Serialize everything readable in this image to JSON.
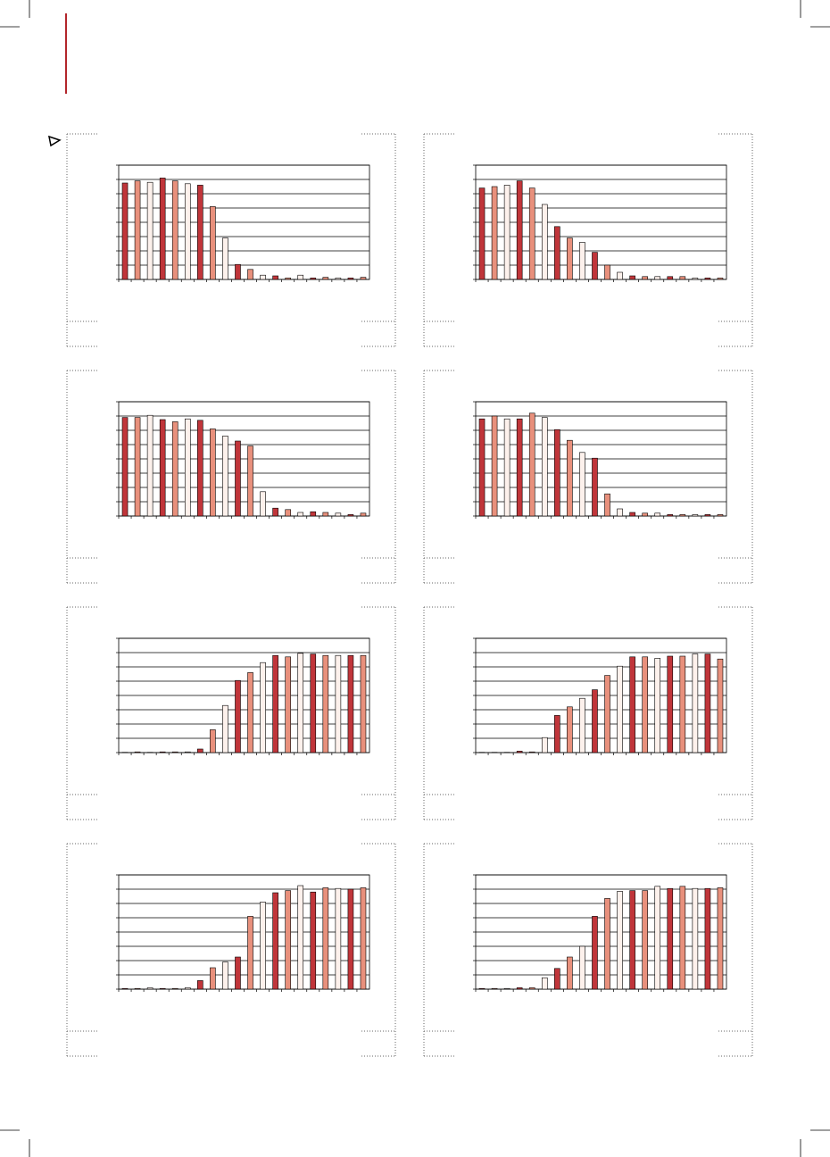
{
  "chart_data": [
    {
      "type": "bar",
      "colors": [
        "#c0353a",
        "#e8907c",
        "#fdf1ec"
      ],
      "ylim": [
        0,
        8
      ],
      "yticks": [
        0,
        1,
        2,
        3,
        4,
        5,
        6,
        7,
        8
      ],
      "grid": true,
      "values": [
        6.75,
        6.9,
        6.8,
        7.1,
        6.9,
        6.7,
        6.6,
        5.1,
        2.9,
        1.05,
        0.7,
        0.3,
        0.25,
        0.1,
        0.3,
        0.1,
        0.15,
        0.1,
        0.1,
        0.15
      ]
    },
    {
      "type": "bar",
      "colors": [
        "#c0353a",
        "#e8907c",
        "#fdf1ec"
      ],
      "ylim": [
        0,
        8
      ],
      "yticks": [
        0,
        1,
        2,
        3,
        4,
        5,
        6,
        7,
        8
      ],
      "grid": true,
      "values": [
        6.4,
        6.5,
        6.6,
        6.9,
        6.4,
        5.25,
        3.7,
        2.9,
        2.6,
        1.9,
        1.0,
        0.5,
        0.25,
        0.2,
        0.2,
        0.2,
        0.2,
        0.1,
        0.1,
        0.1
      ]
    },
    {
      "type": "bar",
      "colors": [
        "#c0353a",
        "#e8907c",
        "#fdf1ec"
      ],
      "ylim": [
        0,
        8
      ],
      "yticks": [
        0,
        1,
        2,
        3,
        4,
        5,
        6,
        7,
        8
      ],
      "grid": true,
      "values": [
        6.9,
        6.9,
        7.05,
        6.75,
        6.6,
        6.8,
        6.7,
        6.1,
        5.6,
        5.25,
        4.9,
        1.7,
        0.55,
        0.45,
        0.25,
        0.3,
        0.25,
        0.2,
        0.1,
        0.2
      ]
    },
    {
      "type": "bar",
      "colors": [
        "#c0353a",
        "#e8907c",
        "#fdf1ec"
      ],
      "ylim": [
        0,
        8
      ],
      "yticks": [
        0,
        1,
        2,
        3,
        4,
        5,
        6,
        7,
        8
      ],
      "grid": true,
      "values": [
        6.8,
        7.0,
        6.8,
        6.8,
        7.2,
        6.9,
        6.05,
        5.3,
        4.45,
        4.05,
        1.55,
        0.5,
        0.25,
        0.2,
        0.2,
        0.1,
        0.1,
        0.1,
        0.1,
        0.1
      ]
    },
    {
      "type": "bar",
      "colors": [
        "#c0353a",
        "#e8907c",
        "#fdf1ec"
      ],
      "ylim": [
        0,
        8
      ],
      "yticks": [
        0,
        1,
        2,
        3,
        4,
        5,
        6,
        7,
        8
      ],
      "grid": true,
      "values": [
        0.02,
        0.05,
        0.02,
        0.05,
        0.05,
        0.05,
        0.25,
        1.6,
        3.3,
        5.05,
        5.6,
        6.3,
        6.8,
        6.7,
        6.95,
        6.9,
        6.8,
        6.8,
        6.8,
        6.8
      ]
    },
    {
      "type": "bar",
      "colors": [
        "#c0353a",
        "#e8907c",
        "#fdf1ec"
      ],
      "ylim": [
        0,
        8
      ],
      "yticks": [
        0,
        1,
        2,
        3,
        4,
        5,
        6,
        7,
        8
      ],
      "grid": true,
      "values": [
        0.02,
        0.02,
        0.02,
        0.1,
        0.05,
        1.05,
        2.6,
        3.2,
        3.8,
        4.4,
        5.4,
        6.05,
        6.7,
        6.7,
        6.6,
        6.75,
        6.75,
        6.9,
        6.9,
        6.55
      ]
    },
    {
      "type": "bar",
      "colors": [
        "#c0353a",
        "#e8907c",
        "#fdf1ec"
      ],
      "ylim": [
        0,
        8
      ],
      "yticks": [
        0,
        1,
        2,
        3,
        4,
        5,
        6,
        7,
        8
      ],
      "grid": true,
      "values": [
        0.05,
        0.05,
        0.1,
        0.05,
        0.05,
        0.1,
        0.6,
        1.5,
        1.9,
        2.25,
        5.1,
        6.1,
        6.75,
        6.9,
        7.25,
        6.8,
        7.1,
        7.05,
        7.0,
        7.1
      ]
    },
    {
      "type": "bar",
      "colors": [
        "#c0353a",
        "#e8907c",
        "#fdf1ec"
      ],
      "ylim": [
        0,
        8
      ],
      "yticks": [
        0,
        1,
        2,
        3,
        4,
        5,
        6,
        7,
        8
      ],
      "grid": true,
      "values": [
        0.05,
        0.05,
        0.05,
        0.1,
        0.1,
        0.8,
        1.45,
        2.25,
        3.0,
        5.1,
        6.35,
        6.85,
        6.9,
        6.9,
        7.2,
        7.05,
        7.2,
        7.05,
        7.05,
        7.1
      ]
    }
  ]
}
